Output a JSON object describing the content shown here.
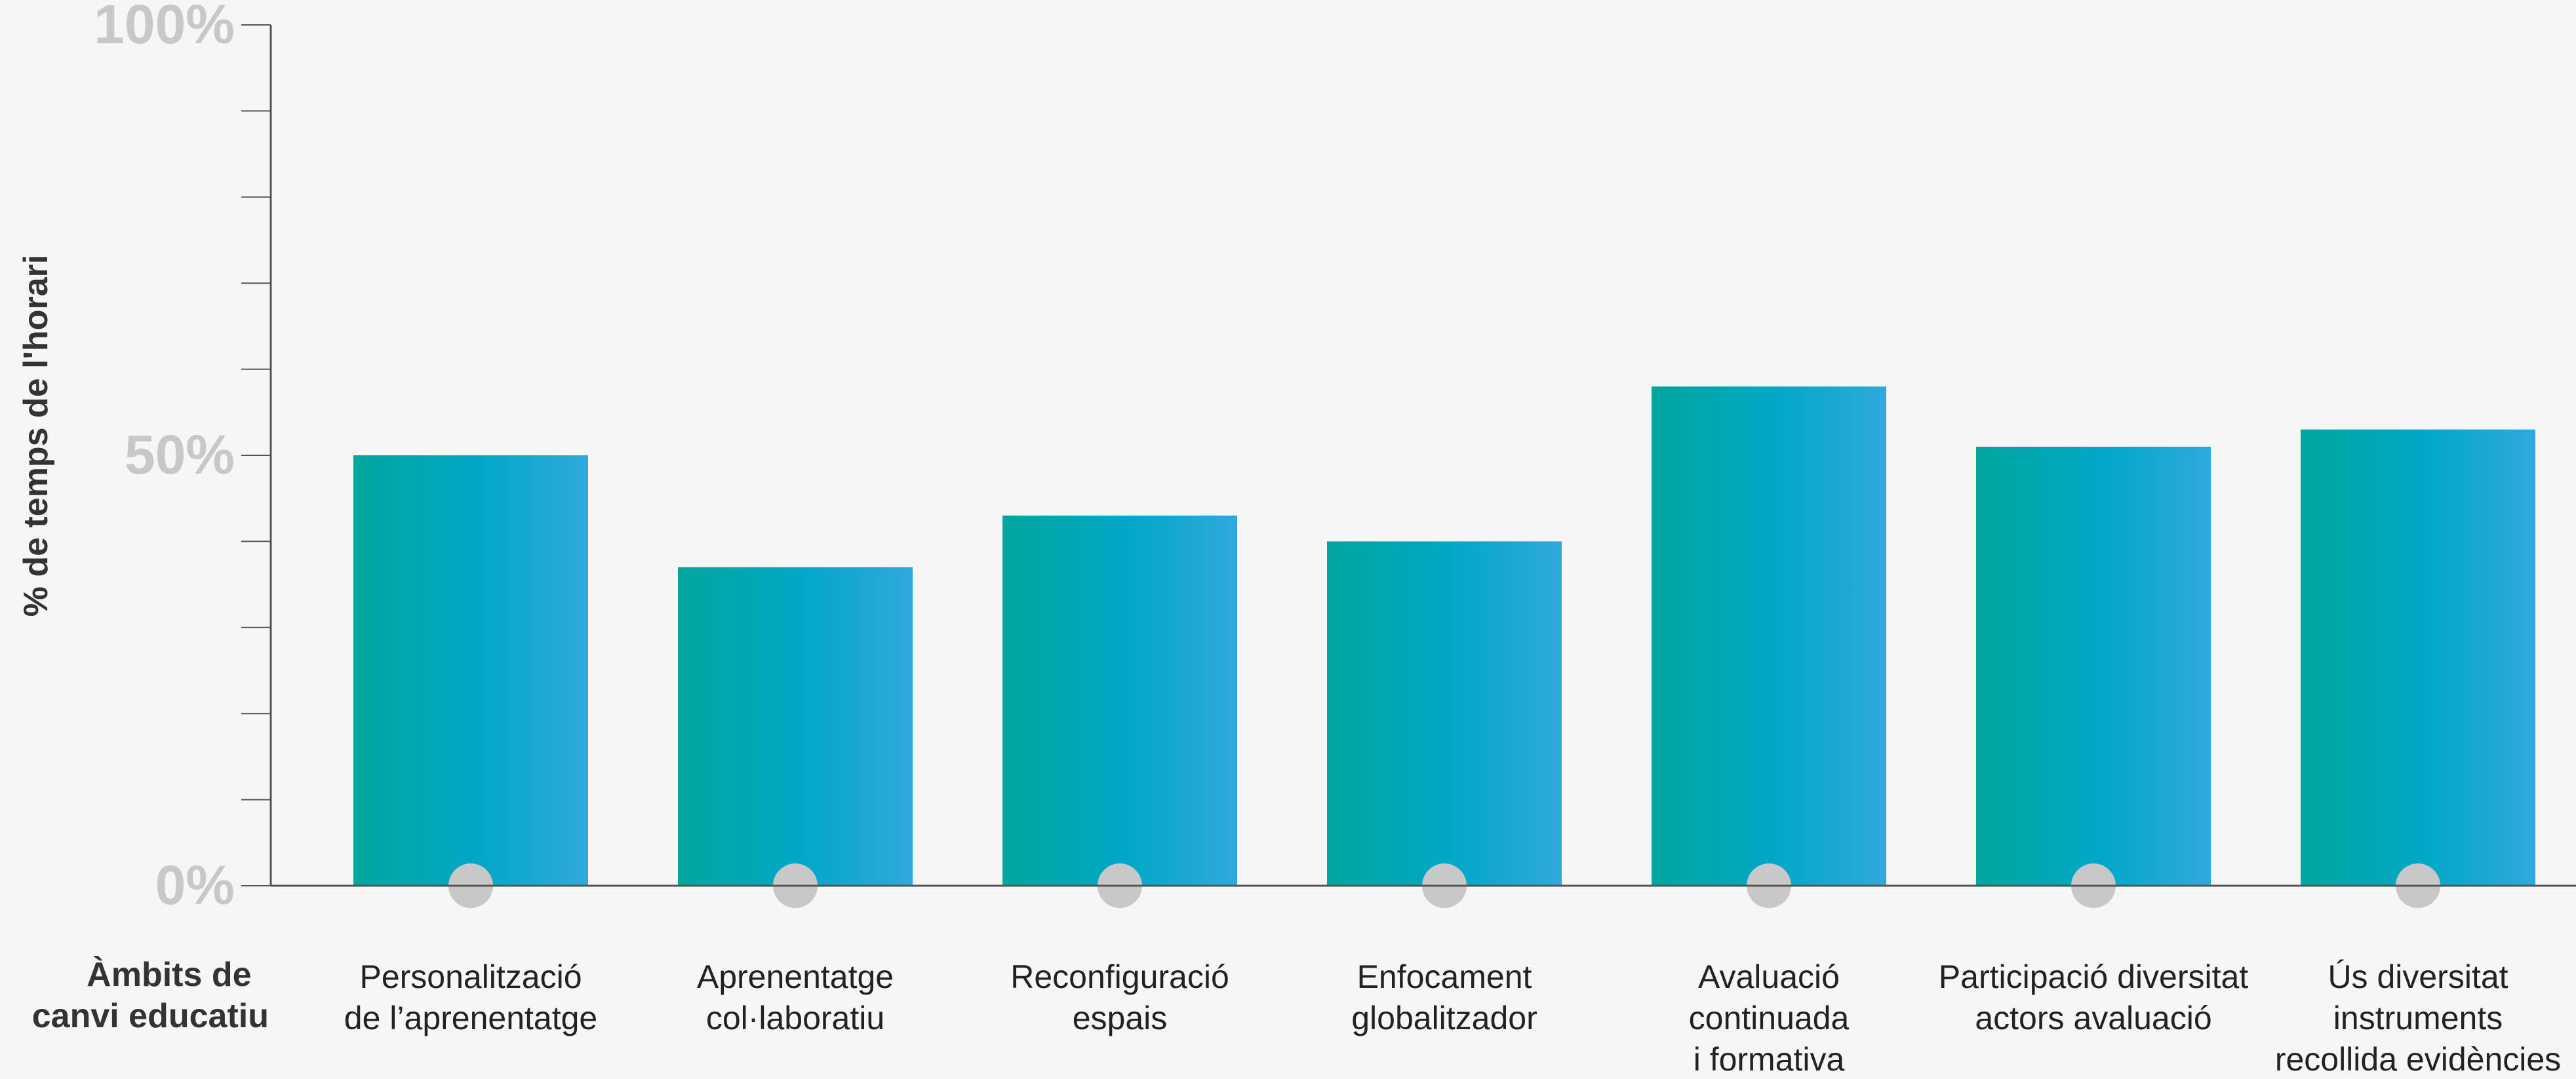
{
  "chart_data": {
    "type": "bar",
    "ylabel": "% de temps de l'horari",
    "xtitle": [
      "Àmbits de",
      "canvi educatiu"
    ],
    "ylim": [
      0,
      100
    ],
    "y_tick_labels": [
      "100%",
      "50%",
      "0%"
    ],
    "y_tick_values": [
      100,
      50,
      0
    ],
    "minor_ticks": [
      10,
      20,
      30,
      40,
      60,
      70,
      80,
      90
    ],
    "categories": [
      [
        "Personalització",
        "de l’aprenentatge"
      ],
      [
        "Aprenentatge",
        "col·laboratiu"
      ],
      [
        "Reconfiguració",
        "espais"
      ],
      [
        "Enfocament",
        "globalitzador"
      ],
      [
        "Avaluació",
        "continuada",
        "i formativa"
      ],
      [
        "Participació diversitat",
        "actors avaluació"
      ],
      [
        "Ús diversitat",
        "instruments",
        "recollida evidències"
      ]
    ],
    "values": [
      50,
      37,
      43,
      40,
      58,
      51,
      53
    ],
    "colors": {
      "bar_start": "#00a79d",
      "bar_mid": "#00a8c6",
      "bar_end": "#2fa9dc",
      "marker": "#c8c8c8",
      "axis": "#555555"
    }
  }
}
